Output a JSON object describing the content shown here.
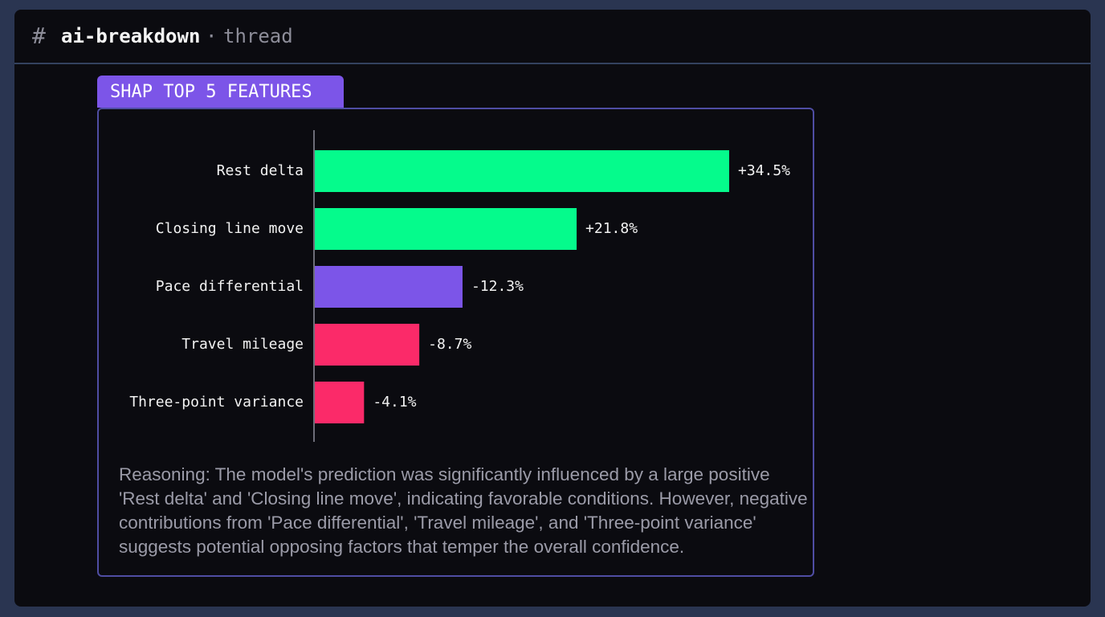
{
  "header": {
    "prefix": "#",
    "channel": "ai-breakdown",
    "separator": "·",
    "context": "thread"
  },
  "chart_data": {
    "type": "hbar",
    "title": "SHAP TOP 5 FEATURES",
    "categories": [
      "Rest delta",
      "Closing line move",
      "Pace differential",
      "Travel mileage",
      "Three-point variance"
    ],
    "values": [
      34.5,
      21.8,
      -12.3,
      -8.7,
      -4.1
    ],
    "value_labels": [
      "+34.5%",
      "+21.8%",
      "-12.3%",
      "-8.7%",
      "-4.1%"
    ],
    "colors": [
      "#05fb8c",
      "#05fb8c",
      "#7c55e8",
      "#fb2a69",
      "#fb2a69"
    ]
  },
  "reasoning": "Reasoning: The model's prediction was significantly influenced by a large positive 'Rest delta' and 'Closing line move', indicating favorable conditions. However, negative contributions from 'Pace differential', 'Travel mileage', and 'Three-point variance' suggests potential opposing factors that temper the overall confidence."
}
